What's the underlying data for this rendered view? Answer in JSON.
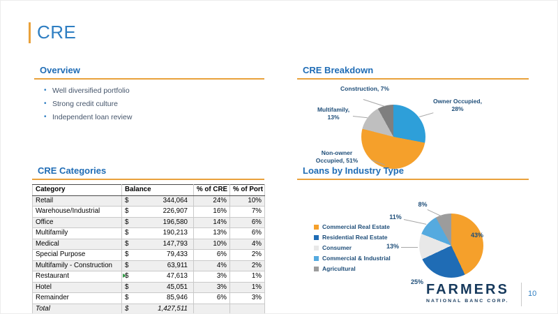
{
  "slide": {
    "title": "CRE",
    "page_number": "10",
    "footer_logo": {
      "name": "FARMERS",
      "subtitle": "NATIONAL BANC CORP."
    }
  },
  "overview": {
    "title": "Overview",
    "bullets": [
      "Well diversified portfolio",
      "Strong credit culture",
      "Independent loan review"
    ]
  },
  "cre_breakdown": {
    "title": "CRE Breakdown"
  },
  "loans_by_industry": {
    "title": "Loans by Industry Type"
  },
  "cre_categories": {
    "title": "CRE Categories",
    "table": {
      "headers": [
        "Category",
        "Balance",
        "% of CRE",
        "% of Port"
      ],
      "currency_symbol": "$",
      "rows": [
        [
          "Retail",
          "344,064",
          "24%",
          "10%"
        ],
        [
          "Warehouse/Industrial",
          "226,907",
          "16%",
          "7%"
        ],
        [
          "Office",
          "196,580",
          "14%",
          "6%"
        ],
        [
          "Multifamily",
          "190,213",
          "13%",
          "6%"
        ],
        [
          "Medical",
          "147,793",
          "10%",
          "4%"
        ],
        [
          "Special Purpose",
          "79,433",
          "6%",
          "2%"
        ],
        [
          "Multifamily - Construction",
          "63,911",
          "4%",
          "2%"
        ],
        [
          "Restaurant",
          "47,613",
          "3%",
          "1%"
        ],
        [
          "Hotel",
          "45,051",
          "3%",
          "1%"
        ],
        [
          "Remainder",
          "85,946",
          "6%",
          "3%"
        ]
      ],
      "total_row": [
        "Total",
        "1,427,511",
        "",
        ""
      ],
      "excel_marker_row_index": 7
    }
  },
  "colors": {
    "heading_blue": "#1F6CB5",
    "title_blue": "#2E7EC2",
    "accent_gold": "#E9A13B",
    "label_navy": "#1F4E79",
    "bullet_text": "#44546A",
    "logo_navy": "#16395C"
  },
  "chart_data": [
    {
      "id": "cre-breakdown-pie",
      "type": "pie",
      "title": "CRE Breakdown",
      "labels": [
        "Owner Occupied",
        "Non-owner Occupied",
        "Multifamily",
        "Construction"
      ],
      "values": [
        28,
        51,
        13,
        7
      ],
      "unit": "%",
      "colors": [
        "#2E9FD9",
        "#F5A02B",
        "#BFBFBF",
        "#7F7F7F"
      ],
      "slice_labels": [
        "Owner Occupied, 28%",
        "Non-owner Occupied, 51%",
        "Multifamily, 13%",
        "Construction, 7%"
      ],
      "legend_position": "none",
      "start_angle": 0,
      "direction": "clockwise"
    },
    {
      "id": "loans-by-industry-pie",
      "type": "pie",
      "title": "Loans by Industry Type",
      "labels": [
        "Commercial Real Estate",
        "Residential Real Estate",
        "Consumer",
        "Commercial & Industrial",
        "Agricultural"
      ],
      "values": [
        43,
        25,
        13,
        11,
        8
      ],
      "unit": "%",
      "colors": [
        "#F5A02B",
        "#1F6CB5",
        "#E8E8E8",
        "#55AADF",
        "#9C9C9C"
      ],
      "value_labels": [
        "43%",
        "25%",
        "13%",
        "11%",
        "8%"
      ],
      "legend_position": "left",
      "start_angle": 0,
      "direction": "clockwise"
    }
  ]
}
